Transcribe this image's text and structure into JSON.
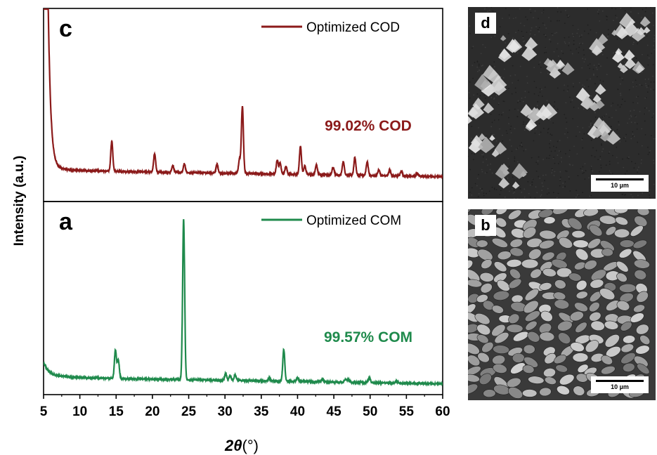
{
  "chart_data": {
    "type": "line",
    "xlabel": "2θ(°)",
    "xlabel_bold": "2θ",
    "xlabel_unit": "(°)",
    "ylabel": "Intensity (a.u.)",
    "xlim": [
      5,
      60
    ],
    "x_ticks": [
      5,
      10,
      15,
      20,
      25,
      30,
      35,
      40,
      45,
      50,
      55,
      60
    ],
    "panels": [
      {
        "label": "c",
        "legend": "Optimized COD",
        "annotation": "99.02% COD",
        "color": "#8b1a1a",
        "baseline": 0.12,
        "decay": {
          "amplitude": 1.9,
          "x0": 5.6,
          "scale": 0.35
        },
        "peaks": [
          [
            14.4,
            0.31
          ],
          [
            20.3,
            0.19
          ],
          [
            22.8,
            0.07
          ],
          [
            24.4,
            0.09
          ],
          [
            28.9,
            0.09
          ],
          [
            32.0,
            0.14
          ],
          [
            32.4,
            0.69
          ],
          [
            37.2,
            0.14
          ],
          [
            37.6,
            0.11
          ],
          [
            38.4,
            0.08
          ],
          [
            40.4,
            0.29
          ],
          [
            41.0,
            0.09
          ],
          [
            42.6,
            0.1
          ],
          [
            44.9,
            0.08
          ],
          [
            46.3,
            0.14
          ],
          [
            47.9,
            0.18
          ],
          [
            49.6,
            0.14
          ],
          [
            51.2,
            0.06
          ],
          [
            52.7,
            0.06
          ],
          [
            54.3,
            0.05
          ],
          [
            56.5,
            0.03
          ]
        ]
      },
      {
        "label": "a",
        "legend": "Optimized COM",
        "annotation": "99.57% COM",
        "color": "#1f8a4c",
        "baseline": 0.12,
        "decay": {
          "amplitude": 0.12,
          "x0": 5.0,
          "scale": 0.6
        },
        "peaks": [
          [
            14.9,
            0.29
          ],
          [
            15.3,
            0.19
          ],
          [
            24.3,
            1.66
          ],
          [
            30.1,
            0.07
          ],
          [
            30.7,
            0.05
          ],
          [
            31.4,
            0.06
          ],
          [
            36.1,
            0.03
          ],
          [
            38.1,
            0.33
          ],
          [
            40.0,
            0.04
          ],
          [
            43.4,
            0.03
          ],
          [
            46.6,
            0.03
          ],
          [
            47.0,
            0.03
          ],
          [
            49.9,
            0.05
          ],
          [
            53.6,
            0.02
          ]
        ]
      }
    ],
    "ylim": [
      0,
      2.0
    ]
  },
  "sem": [
    {
      "label": "d",
      "scale": "10 µm",
      "kind": "COD"
    },
    {
      "label": "b",
      "scale": "10 µm",
      "kind": "COM"
    }
  ]
}
